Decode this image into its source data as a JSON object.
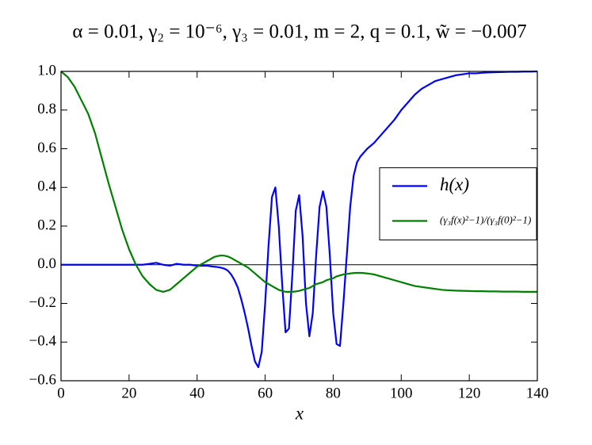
{
  "chart_data": {
    "type": "line",
    "title": "α = 0.01, γ₂ = 10⁻⁶, γ₃ = 0.01, m = 2, q = 0.1, w̃ = −0.007",
    "xlabel": "x",
    "x": [
      0,
      2,
      4,
      6,
      8,
      10,
      12,
      14,
      16,
      18,
      20,
      22,
      24,
      26,
      28,
      30,
      32,
      34,
      36,
      38,
      40,
      41,
      42,
      43,
      44,
      45,
      46,
      47,
      48,
      49,
      50,
      51,
      52,
      53,
      54,
      55,
      56,
      57,
      58,
      59,
      60,
      61,
      62,
      63,
      64,
      65,
      66,
      67,
      68,
      69,
      70,
      71,
      72,
      73,
      74,
      75,
      76,
      77,
      78,
      79,
      80,
      81,
      82,
      83,
      84,
      85,
      86,
      87,
      88,
      89,
      90,
      92,
      94,
      96,
      98,
      100,
      102,
      104,
      106,
      108,
      110,
      112,
      114,
      116,
      118,
      120,
      122,
      124,
      126,
      128,
      130,
      132,
      134,
      136,
      138,
      140
    ],
    "series": [
      {
        "name": "h(x)",
        "color": "#0000ff",
        "values": [
          0,
          0,
          0,
          0,
          0,
          0,
          0,
          0,
          0,
          0,
          0,
          0,
          0,
          0.005,
          0.01,
          0,
          -0.005,
          0.005,
          0,
          0,
          -0.005,
          -0.005,
          -0.005,
          -0.005,
          -0.008,
          -0.01,
          -0.012,
          -0.015,
          -0.02,
          -0.03,
          -0.05,
          -0.08,
          -0.12,
          -0.18,
          -0.25,
          -0.33,
          -0.42,
          -0.5,
          -0.53,
          -0.45,
          -0.2,
          0.1,
          0.35,
          0.4,
          0.2,
          -0.1,
          -0.35,
          -0.33,
          -0.05,
          0.28,
          0.36,
          0.15,
          -0.2,
          -0.37,
          -0.25,
          0.05,
          0.3,
          0.38,
          0.3,
          0.05,
          -0.25,
          -0.41,
          -0.42,
          -0.2,
          0.05,
          0.3,
          0.46,
          0.53,
          0.56,
          0.58,
          0.6,
          0.63,
          0.67,
          0.71,
          0.75,
          0.8,
          0.84,
          0.88,
          0.91,
          0.93,
          0.95,
          0.96,
          0.97,
          0.98,
          0.985,
          0.99,
          0.99,
          0.993,
          0.995,
          0.996,
          0.997,
          0.998,
          0.998,
          0.999,
          0.999,
          1.0
        ]
      },
      {
        "name": "(γ₃f(x)²−1)/(γ₃f(0)²−1)",
        "color": "#008000",
        "values": [
          1.0,
          0.97,
          0.92,
          0.85,
          0.78,
          0.68,
          0.55,
          0.42,
          0.3,
          0.18,
          0.08,
          0.0,
          -0.06,
          -0.1,
          -0.13,
          -0.14,
          -0.13,
          -0.1,
          -0.07,
          -0.04,
          -0.01,
          0.0,
          0.01,
          0.02,
          0.03,
          0.04,
          0.045,
          0.048,
          0.047,
          0.043,
          0.035,
          0.025,
          0.015,
          0.005,
          -0.005,
          -0.015,
          -0.03,
          -0.045,
          -0.06,
          -0.075,
          -0.09,
          -0.1,
          -0.11,
          -0.12,
          -0.13,
          -0.135,
          -0.14,
          -0.14,
          -0.14,
          -0.138,
          -0.135,
          -0.13,
          -0.125,
          -0.12,
          -0.11,
          -0.1,
          -0.095,
          -0.09,
          -0.08,
          -0.075,
          -0.07,
          -0.06,
          -0.055,
          -0.05,
          -0.048,
          -0.045,
          -0.043,
          -0.042,
          -0.042,
          -0.043,
          -0.045,
          -0.05,
          -0.06,
          -0.07,
          -0.08,
          -0.09,
          -0.1,
          -0.11,
          -0.115,
          -0.12,
          -0.125,
          -0.13,
          -0.132,
          -0.134,
          -0.135,
          -0.136,
          -0.137,
          -0.137,
          -0.138,
          -0.138,
          -0.139,
          -0.139,
          -0.139,
          -0.14,
          -0.14,
          -0.14
        ]
      }
    ],
    "xlim": [
      0,
      140
    ],
    "xticks": [
      0,
      20,
      40,
      60,
      80,
      100,
      120,
      140
    ],
    "ylim": [
      -0.6,
      1.0
    ],
    "yticks": [
      {
        "value": -0.6,
        "label": "−0.6"
      },
      {
        "value": -0.4,
        "label": "−0.4"
      },
      {
        "value": -0.2,
        "label": "−0.2"
      },
      {
        "value": 0,
        "label": "0.0"
      },
      0.2,
      0.4,
      0.6,
      0.8,
      {
        "value": 1.0,
        "label": "1.0"
      }
    ],
    "hline": 0,
    "grid": false,
    "legend": "center right"
  }
}
